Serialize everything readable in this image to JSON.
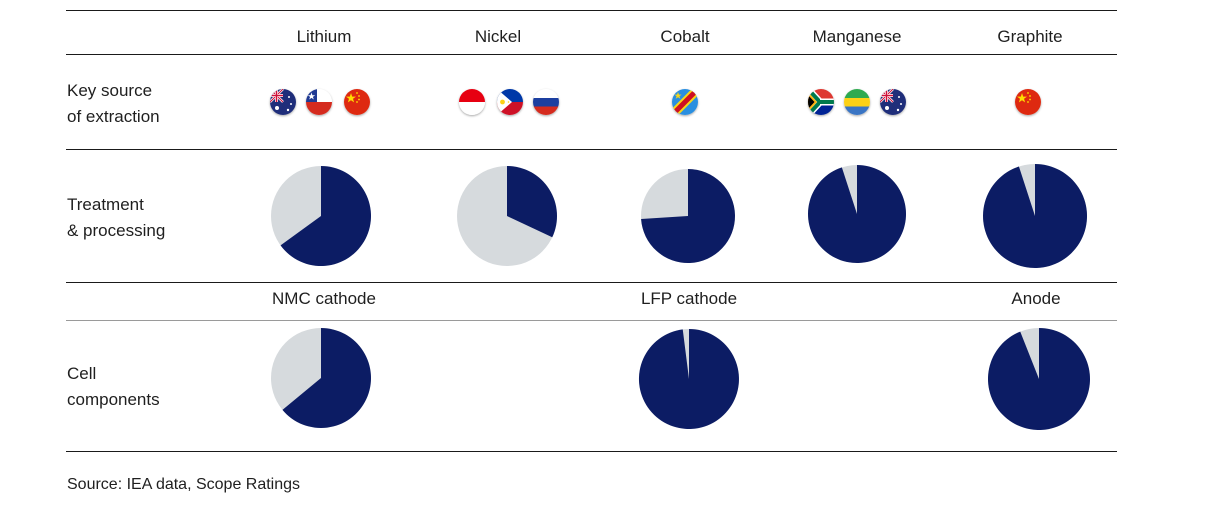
{
  "minerals": [
    "Lithium",
    "Nickel",
    "Cobalt",
    "Manganese",
    "Graphite"
  ],
  "components": [
    "NMC cathode",
    "LFP cathode",
    "Anode"
  ],
  "rows": {
    "extraction": [
      "Key source",
      "of extraction"
    ],
    "processing": [
      "Treatment",
      "& processing"
    ],
    "cells": [
      "Cell",
      "components"
    ]
  },
  "flags": {
    "lithium": [
      "australia-flag-icon",
      "chile-flag-icon",
      "china-flag-icon"
    ],
    "nickel": [
      "indonesia-flag-icon",
      "philippines-flag-icon",
      "russia-flag-icon"
    ],
    "cobalt": [
      "dr-congo-flag-icon"
    ],
    "manganese": [
      "south-africa-flag-icon",
      "gabon-flag-icon",
      "australia-flag-icon"
    ],
    "graphite": [
      "china-flag-icon"
    ]
  },
  "colors": {
    "primary": "#0c1c64",
    "remainder": "#d6dadd"
  },
  "chart_data": [
    {
      "type": "pie",
      "category": "Lithium",
      "row": "Treatment & processing",
      "dark_share_percent": 65
    },
    {
      "type": "pie",
      "category": "Nickel",
      "row": "Treatment & processing",
      "dark_share_percent": 32
    },
    {
      "type": "pie",
      "category": "Cobalt",
      "row": "Treatment & processing",
      "dark_share_percent": 74
    },
    {
      "type": "pie",
      "category": "Manganese",
      "row": "Treatment & processing",
      "dark_share_percent": 95
    },
    {
      "type": "pie",
      "category": "Graphite",
      "row": "Treatment & processing",
      "dark_share_percent": 95
    },
    {
      "type": "pie",
      "category": "NMC cathode",
      "row": "Cell components",
      "dark_share_percent": 64
    },
    {
      "type": "pie",
      "category": "LFP cathode",
      "row": "Cell components",
      "dark_share_percent": 98
    },
    {
      "type": "pie",
      "category": "Anode",
      "row": "Cell components",
      "dark_share_percent": 94
    }
  ],
  "source": "Source: IEA data, Scope Ratings"
}
